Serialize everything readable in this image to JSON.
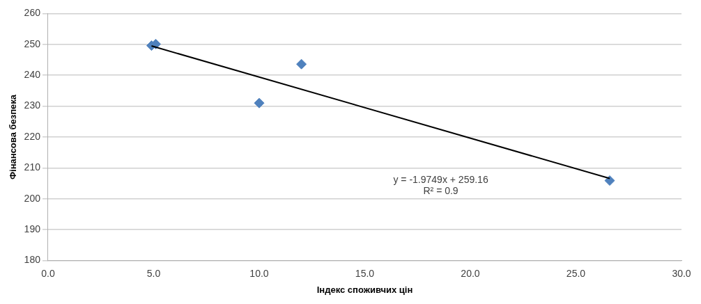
{
  "chart_data": {
    "type": "scatter",
    "xlabel": "Індекс споживчих цін",
    "ylabel": "Фінансова безпека",
    "xlim": [
      0,
      30
    ],
    "xticks": [
      {
        "value": 0,
        "label": "0.0"
      },
      {
        "value": 5,
        "label": "5.0"
      },
      {
        "value": 10,
        "label": "10.0"
      },
      {
        "value": 15,
        "label": "15.0"
      },
      {
        "value": 20,
        "label": "20.0"
      },
      {
        "value": 25,
        "label": "25.0"
      },
      {
        "value": 30,
        "label": "30.0"
      }
    ],
    "ylim": [
      180,
      260
    ],
    "yticks": [
      180,
      190,
      200,
      210,
      220,
      230,
      240,
      250,
      260
    ],
    "grid": "y",
    "marker": "diamond",
    "series": [
      {
        "color": "#4f81bd",
        "x": [
          4.9,
          5.1,
          10.0,
          12.0,
          26.6
        ],
        "values": [
          249.6,
          250.1,
          231.0,
          243.6,
          205.9
        ]
      },
      {
        "type": "line",
        "color": "#000000",
        "marker": "none",
        "x": [
          4.9,
          26.6
        ],
        "values": [
          249.5,
          206.6
        ]
      }
    ],
    "annotations": [
      "y = -1.9749x + 259.16",
      "R² = 0.9"
    ]
  }
}
